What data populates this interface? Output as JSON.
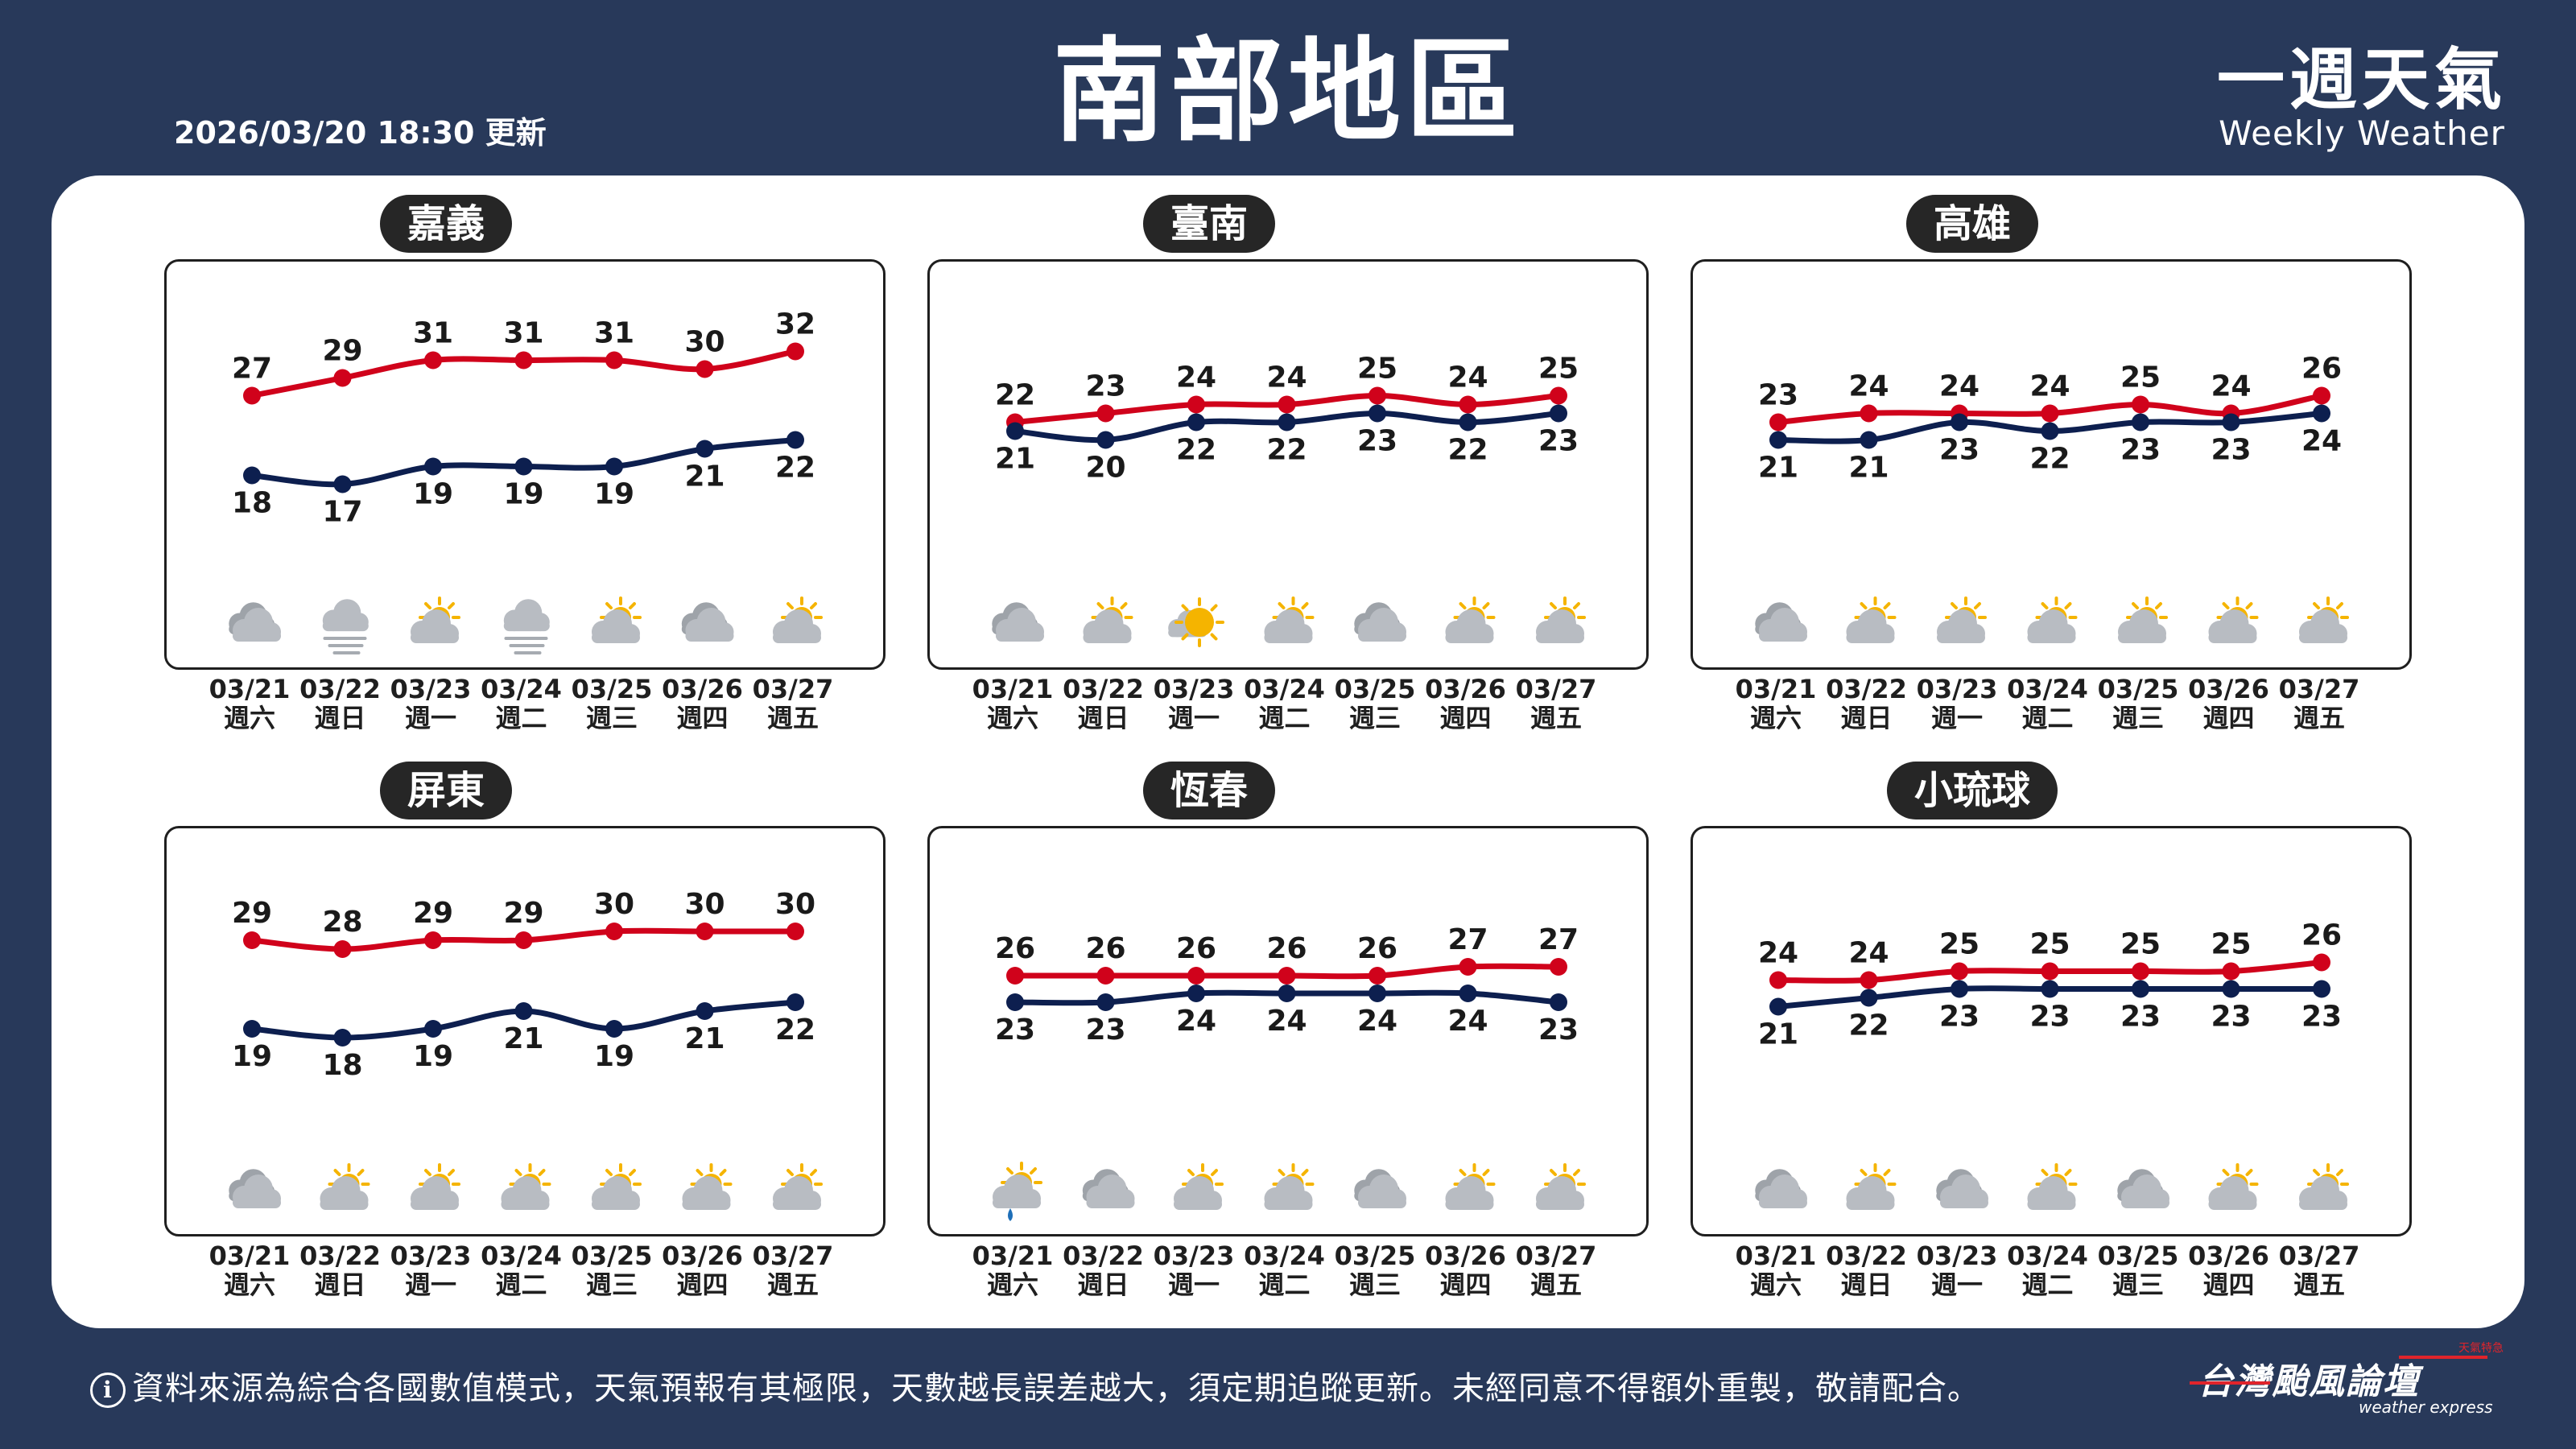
{
  "header": {
    "update_time": "2026/03/20 18:30 更新",
    "title": "南部地區",
    "brand_cn": "一週天氣",
    "brand_en": "Weekly Weather"
  },
  "colors": {
    "high": "#d0021b",
    "low": "#0d1f4f",
    "background": "#28395a",
    "sun": "#f5b400",
    "cloud": "#b8bcc2",
    "rain": "#1e6fb8"
  },
  "dates": [
    "03/21",
    "03/22",
    "03/23",
    "03/24",
    "03/25",
    "03/26",
    "03/27"
  ],
  "weekdays": [
    "週六",
    "週日",
    "週一",
    "週二",
    "週三",
    "週四",
    "週五"
  ],
  "chart_data": [
    {
      "type": "line",
      "title": "嘉義",
      "categories": [
        "03/21",
        "03/22",
        "03/23",
        "03/24",
        "03/25",
        "03/26",
        "03/27"
      ],
      "series": [
        {
          "values": [
            27,
            29,
            31,
            31,
            31,
            30,
            32
          ]
        },
        {
          "values": [
            18,
            17,
            19,
            19,
            19,
            21,
            22
          ]
        }
      ],
      "icons": [
        "cloudy-icon",
        "fog-icon",
        "partly-sunny-icon",
        "fog-icon",
        "partly-sunny-icon",
        "cloudy-icon",
        "partly-sunny-icon"
      ]
    },
    {
      "type": "line",
      "title": "臺南",
      "categories": [
        "03/21",
        "03/22",
        "03/23",
        "03/24",
        "03/25",
        "03/26",
        "03/27"
      ],
      "series": [
        {
          "values": [
            22,
            23,
            24,
            24,
            25,
            24,
            25
          ]
        },
        {
          "values": [
            21,
            20,
            22,
            22,
            23,
            22,
            23
          ]
        }
      ],
      "icons": [
        "cloudy-icon",
        "partly-sunny-icon",
        "sunny-cloud-icon",
        "partly-sunny-icon",
        "cloudy-icon",
        "partly-sunny-icon",
        "partly-sunny-icon"
      ]
    },
    {
      "type": "line",
      "title": "高雄",
      "categories": [
        "03/21",
        "03/22",
        "03/23",
        "03/24",
        "03/25",
        "03/26",
        "03/27"
      ],
      "series": [
        {
          "values": [
            23,
            24,
            24,
            24,
            25,
            24,
            26
          ]
        },
        {
          "values": [
            21,
            21,
            23,
            22,
            23,
            23,
            24
          ]
        }
      ],
      "icons": [
        "cloudy-icon",
        "partly-sunny-icon",
        "partly-sunny-icon",
        "partly-sunny-icon",
        "partly-sunny-icon",
        "partly-sunny-icon",
        "partly-sunny-icon"
      ]
    },
    {
      "type": "line",
      "title": "屏東",
      "categories": [
        "03/21",
        "03/22",
        "03/23",
        "03/24",
        "03/25",
        "03/26",
        "03/27"
      ],
      "series": [
        {
          "values": [
            29,
            28,
            29,
            29,
            30,
            30,
            30
          ]
        },
        {
          "values": [
            19,
            18,
            19,
            21,
            19,
            21,
            22
          ]
        }
      ],
      "icons": [
        "cloudy-icon",
        "partly-sunny-icon",
        "partly-sunny-icon",
        "partly-sunny-icon",
        "partly-sunny-icon",
        "partly-sunny-icon",
        "partly-sunny-icon"
      ]
    },
    {
      "type": "line",
      "title": "恆春",
      "categories": [
        "03/21",
        "03/22",
        "03/23",
        "03/24",
        "03/25",
        "03/26",
        "03/27"
      ],
      "series": [
        {
          "values": [
            26,
            26,
            26,
            26,
            26,
            27,
            27
          ]
        },
        {
          "values": [
            23,
            23,
            24,
            24,
            24,
            24,
            23
          ]
        }
      ],
      "icons": [
        "rain-sunny-icon",
        "cloudy-icon",
        "partly-sunny-icon",
        "partly-sunny-icon",
        "cloudy-icon",
        "partly-sunny-icon",
        "partly-sunny-icon"
      ]
    },
    {
      "type": "line",
      "title": "小琉球",
      "categories": [
        "03/21",
        "03/22",
        "03/23",
        "03/24",
        "03/25",
        "03/26",
        "03/27"
      ],
      "series": [
        {
          "values": [
            24,
            24,
            25,
            25,
            25,
            25,
            26
          ]
        },
        {
          "values": [
            21,
            22,
            23,
            23,
            23,
            23,
            23
          ]
        }
      ],
      "icons": [
        "cloudy-icon",
        "partly-sunny-icon",
        "cloudy-icon",
        "partly-sunny-icon",
        "cloudy-icon",
        "partly-sunny-icon",
        "partly-sunny-icon"
      ]
    }
  ],
  "footer": {
    "info_glyph": "i",
    "text": "資料來源為綜合各國數值模式，天氣預報有其極限，天數越長誤差越大，須定期追蹤更新。未經同意不得額外重製，敬請配合。",
    "logo_cn": "台灣颱風論壇",
    "logo_en": "weather express",
    "logo_tiny": "天氣特急"
  }
}
